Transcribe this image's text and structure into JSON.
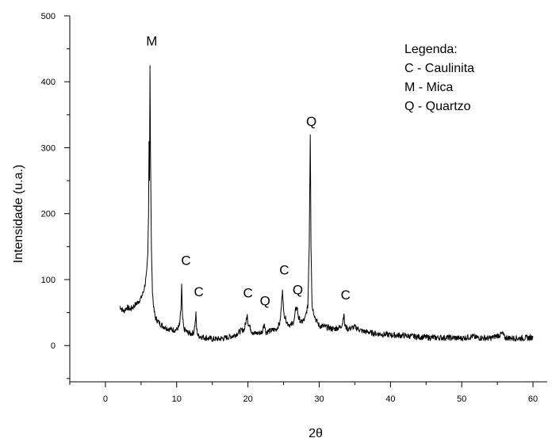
{
  "chart_data": {
    "type": "line",
    "xlabel": "2θ",
    "ylabel": "Intensidade (u.a.)",
    "xlim": [
      -5,
      62
    ],
    "ylim": [
      -55,
      500
    ],
    "xticks": [
      0,
      10,
      20,
      30,
      40,
      50,
      60
    ],
    "yticks": [
      0,
      100,
      200,
      300,
      400,
      500
    ],
    "grid": false,
    "legend": {
      "placement": "top-right",
      "title": "Legenda:",
      "entries": [
        "C - Caulinita",
        "M - Mica",
        "Q - Quartzo"
      ]
    },
    "annotations": [
      {
        "text": "M",
        "x": 6.5,
        "y": 455
      },
      {
        "text": "C",
        "x": 11.3,
        "y": 122
      },
      {
        "text": "C",
        "x": 13.1,
        "y": 75
      },
      {
        "text": "C",
        "x": 20.0,
        "y": 73
      },
      {
        "text": "Q",
        "x": 22.4,
        "y": 61
      },
      {
        "text": "C",
        "x": 25.1,
        "y": 108
      },
      {
        "text": "Q",
        "x": 27.0,
        "y": 78
      },
      {
        "text": "Q",
        "x": 28.9,
        "y": 333
      },
      {
        "text": "C",
        "x": 33.7,
        "y": 70
      }
    ],
    "series": [
      {
        "points": [
          [
            2.0,
            60
          ],
          [
            2.3,
            55
          ],
          [
            2.6,
            52
          ],
          [
            3.0,
            58
          ],
          [
            3.5,
            55
          ],
          [
            4.0,
            60
          ],
          [
            4.5,
            65
          ],
          [
            5.0,
            72
          ],
          [
            5.3,
            80
          ],
          [
            5.6,
            95
          ],
          [
            5.8,
            115
          ],
          [
            5.95,
            140
          ],
          [
            6.05,
            200
          ],
          [
            6.12,
            310
          ],
          [
            6.18,
            250
          ],
          [
            6.25,
            425
          ],
          [
            6.32,
            300
          ],
          [
            6.45,
            150
          ],
          [
            6.6,
            80
          ],
          [
            6.8,
            55
          ],
          [
            7.0,
            42
          ],
          [
            7.5,
            35
          ],
          [
            8.0,
            30
          ],
          [
            8.5,
            27
          ],
          [
            9.0,
            25
          ],
          [
            9.5,
            24
          ],
          [
            10.0,
            24
          ],
          [
            10.4,
            30
          ],
          [
            10.6,
            55
          ],
          [
            10.7,
            92
          ],
          [
            10.8,
            45
          ],
          [
            11.0,
            25
          ],
          [
            11.5,
            20
          ],
          [
            12.0,
            18
          ],
          [
            12.4,
            20
          ],
          [
            12.6,
            35
          ],
          [
            12.7,
            48
          ],
          [
            12.8,
            25
          ],
          [
            13.0,
            15
          ],
          [
            14.0,
            12
          ],
          [
            15.0,
            10
          ],
          [
            16.0,
            10
          ],
          [
            17.0,
            12
          ],
          [
            18.0,
            15
          ],
          [
            19.0,
            22
          ],
          [
            19.5,
            25
          ],
          [
            19.8,
            40
          ],
          [
            19.9,
            50
          ],
          [
            20.0,
            35
          ],
          [
            20.5,
            22
          ],
          [
            21.0,
            18
          ],
          [
            22.0,
            20
          ],
          [
            22.3,
            35
          ],
          [
            22.5,
            20
          ],
          [
            23.0,
            22
          ],
          [
            24.0,
            25
          ],
          [
            24.5,
            35
          ],
          [
            24.7,
            60
          ],
          [
            24.85,
            88
          ],
          [
            25.0,
            50
          ],
          [
            25.5,
            35
          ],
          [
            26.0,
            30
          ],
          [
            26.5,
            38
          ],
          [
            26.7,
            55
          ],
          [
            26.9,
            58
          ],
          [
            27.1,
            42
          ],
          [
            27.5,
            35
          ],
          [
            28.0,
            40
          ],
          [
            28.4,
            60
          ],
          [
            28.6,
            150
          ],
          [
            28.75,
            320
          ],
          [
            28.85,
            150
          ],
          [
            29.0,
            60
          ],
          [
            29.5,
            40
          ],
          [
            30.0,
            30
          ],
          [
            31.0,
            28
          ],
          [
            32.0,
            25
          ],
          [
            33.0,
            28
          ],
          [
            33.3,
            35
          ],
          [
            33.45,
            50
          ],
          [
            33.6,
            30
          ],
          [
            34.0,
            25
          ],
          [
            35.0,
            28
          ],
          [
            36.0,
            22
          ],
          [
            38.0,
            18
          ],
          [
            40.0,
            16
          ],
          [
            42.0,
            15
          ],
          [
            44.0,
            13
          ],
          [
            46.0,
            12
          ],
          [
            48.0,
            12
          ],
          [
            50.0,
            11
          ],
          [
            51.5,
            14
          ],
          [
            52.0,
            12
          ],
          [
            54.0,
            11
          ],
          [
            55.8,
            18
          ],
          [
            56.0,
            12
          ],
          [
            58.0,
            11
          ],
          [
            60.0,
            12
          ]
        ]
      }
    ]
  }
}
